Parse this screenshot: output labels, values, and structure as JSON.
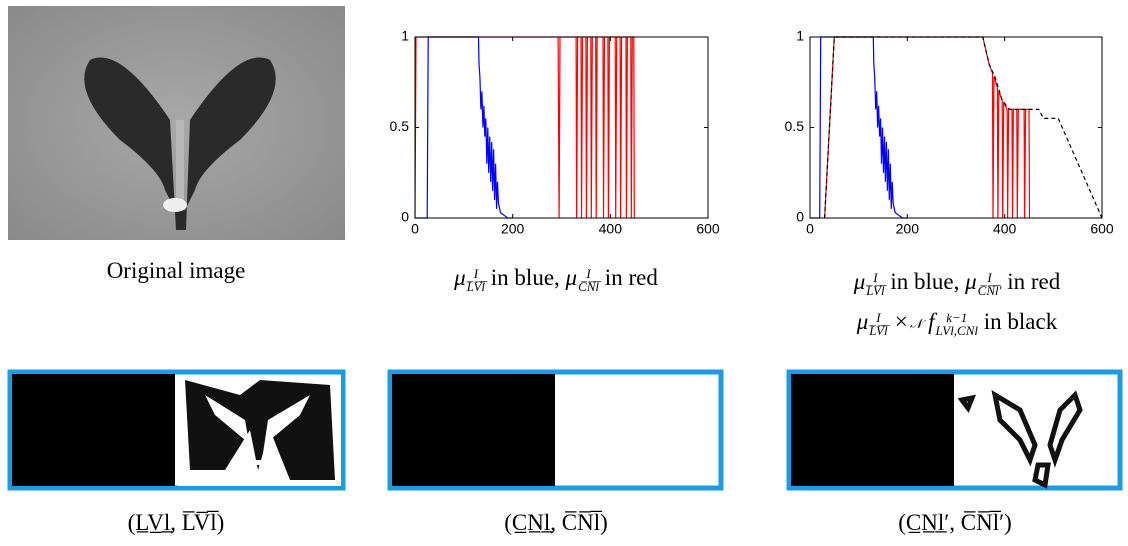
{
  "image_caption": "Original image",
  "bottom_captions": [
    "(L̲V̲l̲, L̅V̅l̅)",
    "(C̲N̲l̲, C̅N̅l̅)",
    "(C̲N̲l̲′, C̅N̅l̅′)"
  ],
  "chart_data": [
    {
      "type": "line",
      "xlim": [
        0,
        600
      ],
      "ylim": [
        0,
        1
      ],
      "xticks": [
        0,
        200,
        400,
        600
      ],
      "yticks": [
        0,
        0.5,
        1
      ],
      "caption": [
        [
          {
            "base": "μ",
            "sup": "I",
            "sub": "L̅V̅l̅"
          },
          {
            "text": " in blue, "
          },
          {
            "base": "μ",
            "sup": "I",
            "sub": "C̅N̅l̅"
          },
          {
            "text": " in red"
          }
        ]
      ],
      "series": [
        {
          "color": "#0000ff",
          "x": [
            0,
            25,
            27,
            130,
            131,
            133,
            135,
            137,
            139,
            141,
            143,
            145,
            147,
            149,
            151,
            153,
            155,
            157,
            159,
            161,
            163,
            165,
            167,
            169,
            171,
            175,
            180,
            185,
            190,
            195,
            200
          ],
          "values": [
            0,
            0,
            1,
            1,
            0.85,
            0.78,
            0.6,
            0.7,
            0.5,
            0.62,
            0.45,
            0.55,
            0.3,
            0.5,
            0.25,
            0.45,
            0.2,
            0.42,
            0.15,
            0.38,
            0.1,
            0.3,
            0.05,
            0.2,
            0.08,
            0.03,
            0.02,
            0.01,
            0,
            0,
            0
          ]
        },
        {
          "color": "#ff0000",
          "x": [
            0,
            2,
            293,
            295,
            297,
            330,
            331,
            333,
            340,
            341,
            343,
            350,
            351,
            353,
            360,
            361,
            363,
            370,
            371,
            373,
            385,
            386,
            388,
            395,
            396,
            398,
            410,
            411,
            413,
            420,
            421,
            423,
            432,
            433,
            435,
            442,
            443,
            445,
            448,
            449
          ],
          "values": [
            0,
            1,
            1,
            0,
            1,
            1,
            0,
            1,
            1,
            0,
            1,
            1,
            0,
            1,
            1,
            0,
            1,
            1,
            0,
            1,
            1,
            0,
            1,
            1,
            0,
            1,
            1,
            0,
            1,
            1,
            0,
            1,
            1,
            0,
            1,
            1,
            0,
            1,
            1,
            0
          ]
        }
      ]
    },
    {
      "type": "line",
      "xlim": [
        0,
        600
      ],
      "ylim": [
        0,
        1
      ],
      "xticks": [
        0,
        200,
        400,
        600
      ],
      "yticks": [
        0,
        0.5,
        1
      ],
      "caption": [
        [
          {
            "base": "μ",
            "sup": "I",
            "sub": "L̅V̅l̅"
          },
          {
            "text": " in blue, "
          },
          {
            "base": "μ",
            "sup": "I",
            "sub": "C̅N̅l̅′"
          },
          {
            "text": " in red"
          }
        ],
        [
          {
            "base": "μ",
            "sup": "I",
            "sub": "L̅V̅l̅"
          },
          {
            "base": " ×",
            "sub": "𝒩"
          },
          {
            "base": " f",
            "sup": "k−1",
            "sub": "LVl,CNl"
          },
          {
            "text": " in black"
          }
        ]
      ],
      "series": [
        {
          "color": "#0000ff",
          "x": [
            0,
            20,
            22,
            130,
            131,
            133,
            135,
            137,
            139,
            141,
            143,
            145,
            147,
            149,
            151,
            153,
            155,
            157,
            159,
            161,
            163,
            165,
            167,
            169,
            171,
            175,
            180,
            185,
            190,
            195,
            200
          ],
          "values": [
            0,
            0,
            1,
            1,
            0.85,
            0.78,
            0.6,
            0.7,
            0.5,
            0.62,
            0.45,
            0.55,
            0.3,
            0.5,
            0.25,
            0.45,
            0.2,
            0.42,
            0.15,
            0.38,
            0.1,
            0.3,
            0.05,
            0.2,
            0.08,
            0.03,
            0.02,
            0.01,
            0,
            0,
            0
          ]
        },
        {
          "color": "#ff0000",
          "x": [
            30,
            50,
            355,
            368,
            375,
            376,
            378,
            385,
            386,
            388,
            395,
            396,
            398,
            405,
            406,
            408,
            415,
            416,
            418,
            425,
            426,
            428,
            440,
            441,
            443,
            450,
            451
          ],
          "values": [
            0,
            1,
            1,
            0.85,
            0.8,
            0,
            0.78,
            0.72,
            0,
            0.7,
            0.65,
            0,
            0.64,
            0.6,
            0,
            0.6,
            0.6,
            0,
            0.6,
            0.6,
            0,
            0.6,
            0.6,
            0,
            0.6,
            0.6,
            0
          ]
        },
        {
          "color": "#000000",
          "dashed": true,
          "x": [
            30,
            50,
            355,
            368,
            380,
            395,
            410,
            470,
            480,
            510,
            600
          ],
          "values": [
            0,
            1,
            1,
            0.85,
            0.78,
            0.65,
            0.6,
            0.6,
            0.55,
            0.55,
            0
          ]
        }
      ]
    }
  ]
}
